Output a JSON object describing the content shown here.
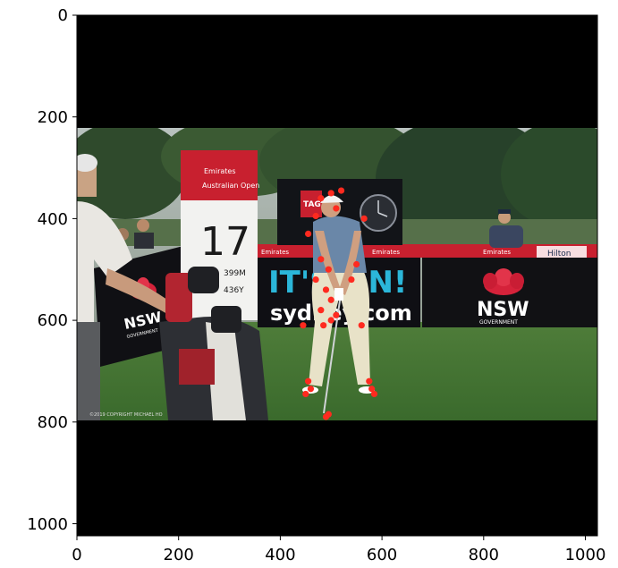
{
  "figure": {
    "x_ticks": [
      "0",
      "200",
      "400",
      "600",
      "800",
      "1000"
    ],
    "y_ticks": [
      "0",
      "200",
      "400",
      "600",
      "800",
      "1000"
    ],
    "x_tick_values": [
      0,
      200,
      400,
      600,
      800,
      1000
    ],
    "y_tick_values": [
      0,
      200,
      400,
      600,
      800,
      1000
    ],
    "xlim": [
      0,
      1024
    ],
    "ylim": [
      1024,
      0
    ]
  },
  "photo": {
    "sign_hole_label": "Emirates Australian Open",
    "sign_hole_number": "17",
    "sign_hole_distance_1": "399M",
    "sign_hole_distance_2": "436Y",
    "banner_brand": "Emirates",
    "tagheuer_logo": "TAG",
    "its_on": "IT'S ON!",
    "sydney_com": "sydney.com",
    "nsw_main": "NSW",
    "nsw_government": "GOVERNMENT",
    "nsw_left": "NSW",
    "nsw_left_gov": "GOVERNMENT",
    "hilton": "Hilton",
    "copyright": "©2019 COPYRIGHT MICHAEL HO"
  },
  "keypoints": [
    [
      500,
      350
    ],
    [
      520,
      345
    ],
    [
      480,
      360
    ],
    [
      510,
      380
    ],
    [
      470,
      395
    ],
    [
      455,
      430
    ],
    [
      565,
      400
    ],
    [
      480,
      480
    ],
    [
      550,
      490
    ],
    [
      495,
      500
    ],
    [
      470,
      520
    ],
    [
      540,
      520
    ],
    [
      490,
      540
    ],
    [
      500,
      560
    ],
    [
      480,
      580
    ],
    [
      510,
      590
    ],
    [
      485,
      610
    ],
    [
      500,
      600
    ],
    [
      445,
      610
    ],
    [
      560,
      610
    ],
    [
      455,
      720
    ],
    [
      575,
      720
    ],
    [
      460,
      735
    ],
    [
      580,
      735
    ],
    [
      450,
      745
    ],
    [
      585,
      745
    ],
    [
      490,
      790
    ],
    [
      495,
      785
    ]
  ]
}
